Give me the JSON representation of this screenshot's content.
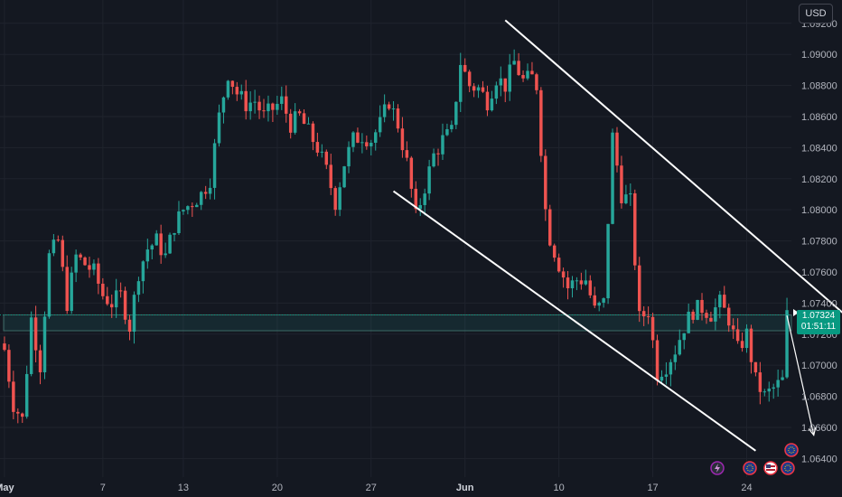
{
  "currency_label": "USD",
  "last_price": "1.07324",
  "countdown": "01:51:11",
  "colors": {
    "background": "#141821",
    "up": "#26a69a",
    "down": "#ef5350",
    "grid": "#1f232d",
    "accent": "#089981",
    "trendline": "#ffffff"
  },
  "events": [
    {
      "name": "lightning-icon"
    },
    {
      "name": "flag-eu-icon"
    },
    {
      "name": "flag-us-icon"
    },
    {
      "name": "flag-eu-icon"
    },
    {
      "name": "flag-eu-icon"
    }
  ],
  "chart_data": {
    "type": "candlestick",
    "instrument_quote": "USD",
    "ylim": [
      1.0628,
      1.0935
    ],
    "y_ticks": [
      "1.09200",
      "1.09000",
      "1.08800",
      "1.08600",
      "1.08400",
      "1.08200",
      "1.08000",
      "1.07800",
      "1.07600",
      "1.07400",
      "1.07200",
      "1.07000",
      "1.06800",
      "1.06600",
      "1.06400"
    ],
    "x_ticks": [
      {
        "label": "May",
        "t": 0,
        "bold": true
      },
      {
        "label": "7",
        "t": 22,
        "bold": false
      },
      {
        "label": "13",
        "t": 40,
        "bold": false
      },
      {
        "label": "20",
        "t": 61,
        "bold": false
      },
      {
        "label": "27",
        "t": 82,
        "bold": false
      },
      {
        "label": "Jun",
        "t": 103,
        "bold": true
      },
      {
        "label": "10",
        "t": 124,
        "bold": false
      },
      {
        "label": "17",
        "t": 145,
        "bold": false
      },
      {
        "label": "24",
        "t": 166,
        "bold": false
      }
    ],
    "close_path": [
      [
        0,
        1.071
      ],
      [
        2,
        1.0675
      ],
      [
        4,
        1.0665
      ],
      [
        6,
        1.073
      ],
      [
        8,
        1.07
      ],
      [
        10,
        1.077
      ],
      [
        12,
        1.078
      ],
      [
        14,
        1.074
      ],
      [
        16,
        1.077
      ],
      [
        18,
        1.0765
      ],
      [
        20,
        1.076
      ],
      [
        22,
        1.0745
      ],
      [
        24,
        1.074
      ],
      [
        26,
        1.0745
      ],
      [
        28,
        1.0725
      ],
      [
        30,
        1.076
      ],
      [
        32,
        1.0775
      ],
      [
        34,
        1.078
      ],
      [
        36,
        1.077
      ],
      [
        38,
        1.079
      ],
      [
        40,
        1.08
      ],
      [
        42,
        1.0805
      ],
      [
        44,
        1.081
      ],
      [
        46,
        1.082
      ],
      [
        48,
        1.086
      ],
      [
        50,
        1.0888
      ],
      [
        52,
        1.0875
      ],
      [
        54,
        1.0868
      ],
      [
        56,
        1.087
      ],
      [
        58,
        1.086
      ],
      [
        60,
        1.0865
      ],
      [
        62,
        1.087
      ],
      [
        64,
        1.0855
      ],
      [
        66,
        1.086
      ],
      [
        68,
        1.085
      ],
      [
        70,
        1.084
      ],
      [
        72,
        1.0825
      ],
      [
        74,
        1.0805
      ],
      [
        76,
        1.083
      ],
      [
        78,
        1.0845
      ],
      [
        80,
        1.0848
      ],
      [
        82,
        1.0845
      ],
      [
        84,
        1.0855
      ],
      [
        86,
        1.087
      ],
      [
        88,
        1.0855
      ],
      [
        90,
        1.083
      ],
      [
        92,
        1.0795
      ],
      [
        94,
        1.0815
      ],
      [
        96,
        1.0835
      ],
      [
        98,
        1.0845
      ],
      [
        100,
        1.085
      ],
      [
        102,
        1.0895
      ],
      [
        104,
        1.088
      ],
      [
        106,
        1.0878
      ],
      [
        108,
        1.087
      ],
      [
        110,
        1.0885
      ],
      [
        112,
        1.088
      ],
      [
        114,
        1.0895
      ],
      [
        116,
        1.0883
      ],
      [
        118,
        1.0885
      ],
      [
        119,
        1.088
      ],
      [
        120,
        1.084
      ],
      [
        121,
        1.08
      ],
      [
        122,
        1.0782
      ],
      [
        124,
        1.0765
      ],
      [
        126,
        1.075
      ],
      [
        128,
        1.0755
      ],
      [
        130,
        1.0755
      ],
      [
        132,
        1.0735
      ],
      [
        134,
        1.074
      ],
      [
        136,
        1.0847
      ],
      [
        138,
        1.081
      ],
      [
        140,
        1.0805
      ],
      [
        142,
        1.073
      ],
      [
        144,
        1.0735
      ],
      [
        146,
        1.0695
      ],
      [
        148,
        1.07
      ],
      [
        150,
        1.071
      ],
      [
        152,
        1.0725
      ],
      [
        154,
        1.0735
      ],
      [
        156,
        1.0737
      ],
      [
        158,
        1.0733
      ],
      [
        160,
        1.074
      ],
      [
        162,
        1.073
      ],
      [
        164,
        1.071
      ],
      [
        166,
        1.072
      ],
      [
        168,
        1.069
      ],
      [
        170,
        1.068
      ],
      [
        172,
        1.0685
      ],
      [
        174,
        1.069
      ],
      [
        175,
        1.0732
      ]
    ],
    "t_range": [
      -1,
      176
    ],
    "support_zone": [
      1.07222,
      1.07324
    ],
    "trendlines": [
      {
        "name": "upper",
        "from": [
          112,
          1.0922
        ],
        "to": [
          197,
          1.071
        ]
      },
      {
        "name": "lower",
        "from": [
          87,
          1.0812
        ],
        "to": [
          168,
          1.0645
        ]
      }
    ],
    "projection_arrow": {
      "from": [
        175,
        1.0732
      ],
      "to": [
        181,
        1.0655
      ]
    }
  }
}
